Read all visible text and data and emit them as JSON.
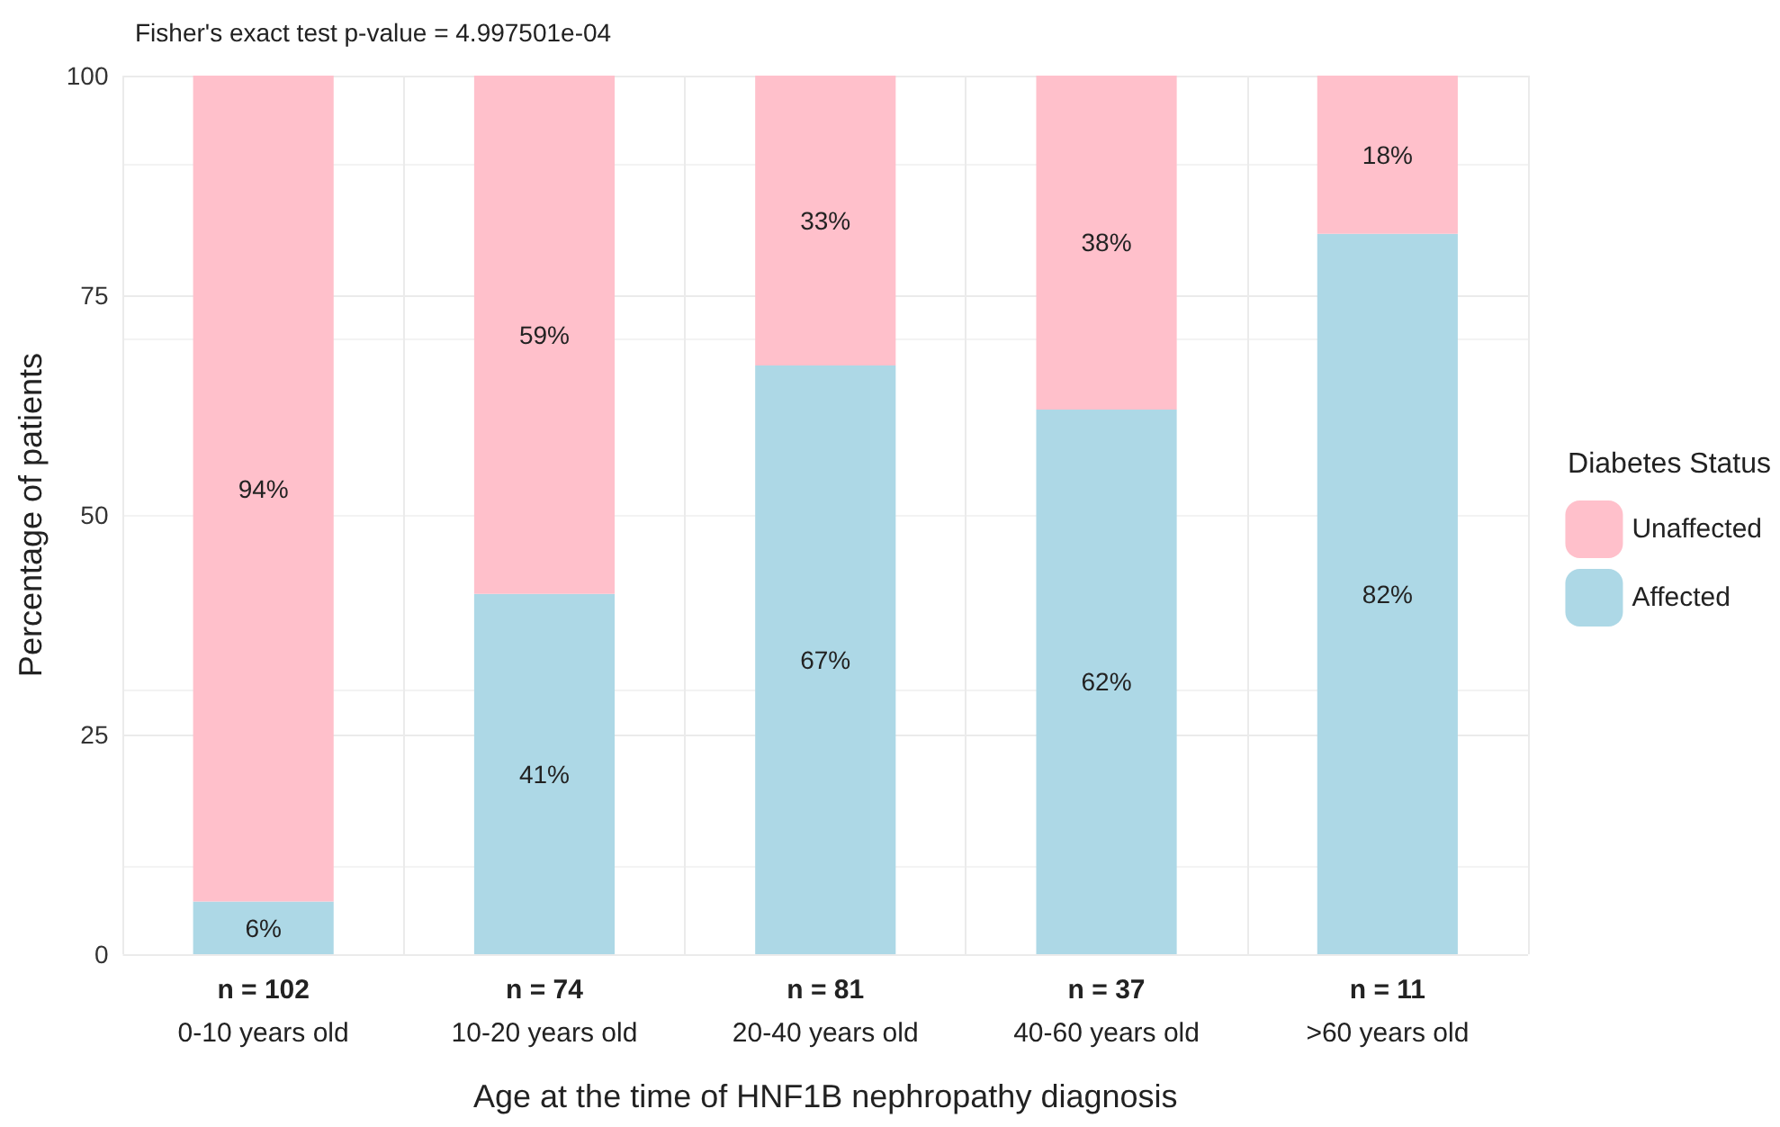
{
  "chart_data": {
    "type": "bar",
    "title": "Fisher's exact test p-value = 4.997501e-04",
    "xlabel": "Age at the time of HNF1B nephropathy diagnosis",
    "ylabel": "Percentage of patients",
    "legend_title": "Diabetes Status",
    "categories": [
      "n = 102\n0-10 years old",
      "n = 74\n10-20 years old",
      "n = 81\n20-40 years old",
      "n = 37\n40-60 years old",
      "n = 11\n>60 years old"
    ],
    "series": [
      {
        "name": "Affected",
        "color": "#add8e6",
        "values": [
          6,
          41,
          67,
          62,
          82
        ],
        "value_labels": [
          "6%",
          "41%",
          "67%",
          "62%",
          "82%"
        ]
      },
      {
        "name": "Unaffected",
        "color": "#ffc0cb",
        "values": [
          94,
          59,
          33,
          38,
          18
        ],
        "value_labels": [
          "94%",
          "59%",
          "33%",
          "38%",
          "18%"
        ]
      }
    ],
    "stacked": true,
    "ylim": [
      0,
      100
    ],
    "yticks": [
      0,
      25,
      50,
      75,
      100
    ],
    "grid": true,
    "legend": "right"
  }
}
